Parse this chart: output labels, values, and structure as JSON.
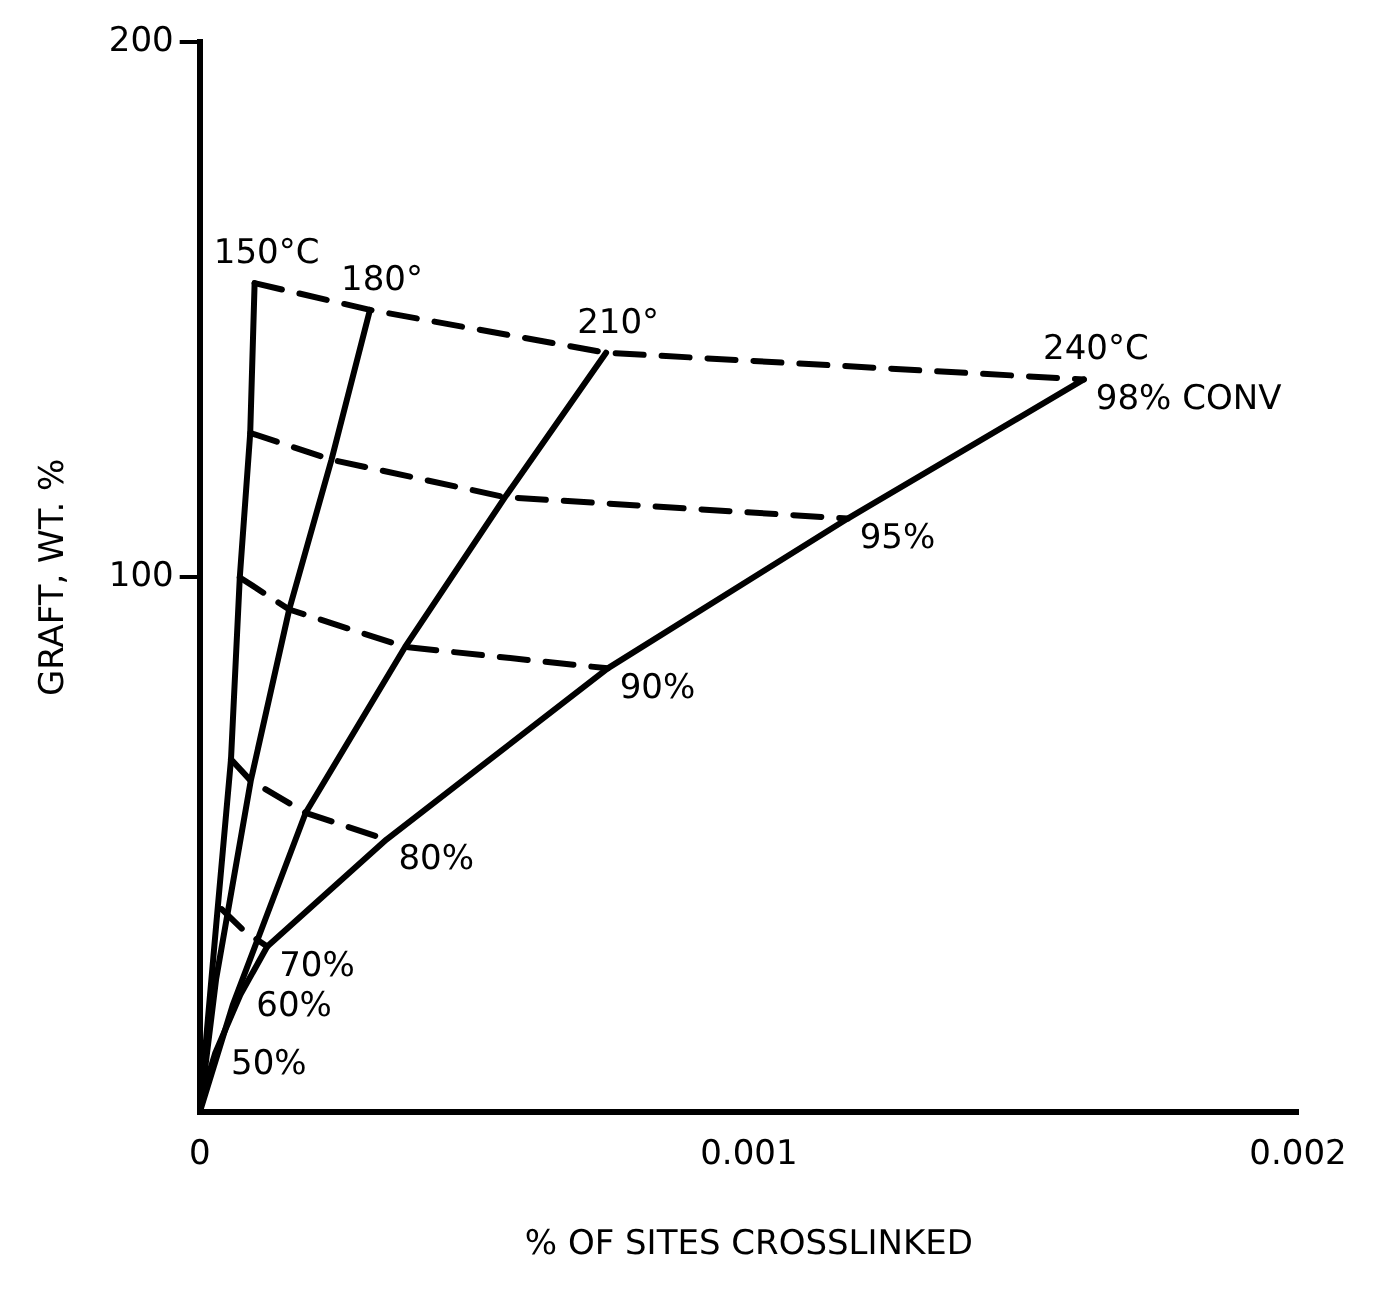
{
  "chart_data": {
    "type": "line",
    "xlabel": "% OF SITES CROSSLINKED",
    "ylabel": "GRAFT, WT. %",
    "xlim": [
      0,
      0.002
    ],
    "ylim": [
      0,
      200
    ],
    "xticks": [
      0,
      0.001,
      0.002
    ],
    "yticks": [
      100,
      200
    ],
    "grid": false,
    "legend": false,
    "marker": "none",
    "series": [
      {
        "name": "150°C",
        "color": "#000000",
        "line_style": "solid",
        "x": [
          0,
          3e-05,
          5.7e-05,
          7.3e-05,
          9.2e-05,
          0.0001
        ],
        "values": [
          0,
          35,
          66,
          100,
          127,
          155
        ]
      },
      {
        "name": "180°",
        "color": "#000000",
        "line_style": "solid",
        "x": [
          0,
          3e-05,
          9.3e-05,
          0.000163,
          0.00024,
          0.00031
        ],
        "values": [
          0,
          25,
          62,
          94,
          122,
          150
        ]
      },
      {
        "name": "210°",
        "color": "#000000",
        "line_style": "solid",
        "x": [
          0,
          6e-05,
          0.000193,
          0.000374,
          0.000556,
          0.00074
        ],
        "values": [
          0,
          20,
          56,
          87,
          115,
          142
        ]
      },
      {
        "name": "240°C",
        "color": "#000000",
        "line_style": "solid",
        "x": [
          0,
          1e-05,
          2.8e-05,
          7.4e-05,
          0.000123,
          0.00034,
          0.000743,
          0.00118,
          0.00161
        ],
        "values": [
          0,
          5,
          11,
          22,
          31,
          51,
          83,
          111,
          137
        ]
      },
      {
        "name": "98% CONV",
        "color": "#000000",
        "line_style": "dashed",
        "x": [
          0.0001,
          0.00031,
          0.00074,
          0.00161
        ],
        "values": [
          155,
          150,
          142,
          137
        ]
      },
      {
        "name": "95%",
        "color": "#000000",
        "line_style": "dashed",
        "x": [
          9.2e-05,
          0.00024,
          0.000556,
          0.00118
        ],
        "values": [
          127,
          122,
          115,
          111
        ]
      },
      {
        "name": "90%",
        "color": "#000000",
        "line_style": "dashed",
        "x": [
          7.3e-05,
          0.000163,
          0.000374,
          0.000743
        ],
        "values": [
          100,
          94,
          87,
          83
        ]
      },
      {
        "name": "80%",
        "color": "#000000",
        "line_style": "dashed",
        "x": [
          5.7e-05,
          9.3e-05,
          0.000193,
          0.00034
        ],
        "values": [
          66,
          62,
          56,
          51
        ]
      },
      {
        "name": "70%",
        "color": "#000000",
        "line_style": "dashed",
        "x": [
          4e-05,
          8e-05,
          0.000123
        ],
        "values": [
          38,
          34,
          31
        ]
      }
    ],
    "annotations": [
      {
        "text": "60%",
        "x": 7.4e-05,
        "y": 22
      },
      {
        "text": "50%",
        "x": 2.8e-05,
        "y": 11
      }
    ]
  }
}
